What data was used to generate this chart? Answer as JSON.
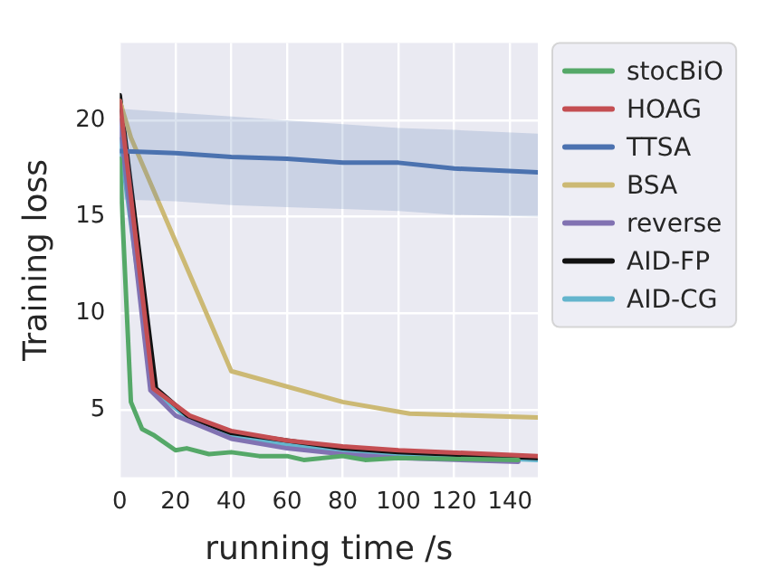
{
  "chart_data": {
    "type": "line",
    "xlabel": "running time /s",
    "ylabel": "Training loss",
    "xlim": [
      0,
      150
    ],
    "xticks": [
      0,
      20,
      40,
      60,
      80,
      100,
      120,
      140
    ],
    "ylim": [
      1.5,
      24
    ],
    "yticks": [
      5,
      10,
      15,
      20
    ],
    "grid": true,
    "legend": "right",
    "marker": "none",
    "line_style": "solid",
    "series": [
      {
        "name": "stocBiO",
        "color": "#55a868",
        "x": [
          0,
          4,
          8,
          12,
          20,
          24,
          32,
          40,
          50,
          60,
          66,
          80,
          88,
          100,
          143
        ],
        "values": [
          18,
          5.4,
          4.0,
          3.7,
          2.9,
          3.0,
          2.7,
          2.8,
          2.6,
          2.6,
          2.4,
          2.6,
          2.4,
          2.5,
          2.4
        ]
      },
      {
        "name": "HOAG",
        "color": "#c44e52",
        "x": [
          0,
          12,
          25,
          40,
          60,
          80,
          100,
          150
        ],
        "values": [
          21,
          6.1,
          4.7,
          3.9,
          3.4,
          3.1,
          2.9,
          2.6
        ]
      },
      {
        "name": "TTSA",
        "color": "#4c72b0",
        "x": [
          0,
          20,
          40,
          60,
          80,
          100,
          120,
          150
        ],
        "values": [
          18.4,
          18.3,
          18.1,
          18.0,
          17.8,
          17.8,
          17.5,
          17.3
        ],
        "lower": [
          15.9,
          15.8,
          15.6,
          15.5,
          15.4,
          15.3,
          15.1,
          15.0
        ],
        "upper": [
          20.6,
          20.4,
          20.2,
          20.0,
          19.8,
          19.6,
          19.5,
          19.3
        ]
      },
      {
        "name": "BSA",
        "color": "#ccb974",
        "x": [
          0,
          4,
          40,
          80,
          104,
          150
        ],
        "values": [
          21,
          19.1,
          7.0,
          5.4,
          4.8,
          4.6
        ]
      },
      {
        "name": "reverse",
        "color": "#8172b2",
        "x": [
          0,
          11,
          20,
          40,
          60,
          80,
          100,
          143
        ],
        "values": [
          20,
          6.0,
          4.7,
          3.5,
          3.0,
          2.7,
          2.5,
          2.3
        ]
      },
      {
        "name": "AID-FP",
        "color": "#111111",
        "x": [
          0,
          13,
          25,
          40,
          80,
          100,
          150
        ],
        "values": [
          21.3,
          6.1,
          4.6,
          3.8,
          3.0,
          2.8,
          2.5
        ]
      },
      {
        "name": "AID-CG",
        "color": "#64b5cd",
        "x": [
          0,
          12,
          25,
          40,
          60,
          80,
          100,
          150
        ],
        "values": [
          19,
          6.0,
          4.5,
          3.7,
          3.2,
          2.9,
          2.7,
          2.4
        ]
      }
    ]
  }
}
